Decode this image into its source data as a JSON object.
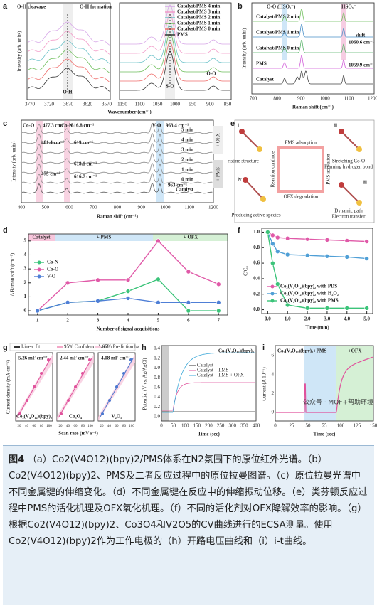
{
  "panels": {
    "a": {
      "label": "a",
      "xlabel": "Wavenumber (cm⁻¹)",
      "ylabel": "Intensity (arb. units)",
      "xticks_left": [
        "3770",
        "3720",
        "3670",
        "3620",
        "3570"
      ],
      "xticks_right": [
        "1150",
        "1100",
        "1050",
        "1000",
        "950",
        "900",
        "850"
      ],
      "annotations": [
        "O-H cleavage",
        "O-H formation",
        "O-H",
        "S-O",
        "O-O"
      ],
      "legend": [
        {
          "name": "Catalyst/PMS 4 min",
          "color": "#d7a8e8"
        },
        {
          "name": "Catalyst/PMS 3 min",
          "color": "#f29ac8"
        },
        {
          "name": "Catalyst/PMS 2 min",
          "color": "#6cc2c9"
        },
        {
          "name": "Catalyst/PMS 1 min",
          "color": "#6fbf5c"
        },
        {
          "name": "Catalyst/PMS 0 min",
          "color": "#ef6f6c"
        },
        {
          "name": "PMS",
          "color": "#333333"
        }
      ]
    },
    "b": {
      "label": "b",
      "xlabel": "Raman shift (cm⁻¹)",
      "ylabel": "Intensity (arb. units)",
      "xticks": [
        700,
        800,
        900,
        1000,
        1100,
        1200
      ],
      "annotations": [
        "O-O (HSO₅⁻)",
        "HSO₅⁻",
        "shift",
        "1060.6 cm⁻¹",
        "1059.9 cm⁻¹"
      ],
      "traces": [
        {
          "name": "Catalyst/PMS 2 min",
          "color": "#6fbf5c"
        },
        {
          "name": "Catalyst/PMS 1 min",
          "color": "#4a90c8"
        },
        {
          "name": "Catalyst/PMS 0 min",
          "color": "#5bb56c"
        },
        {
          "name": "PMS",
          "color": "#d05bd8"
        },
        {
          "name": "Catalyst",
          "color": "#444444"
        }
      ]
    },
    "c": {
      "label": "c",
      "xlabel": "Raman shift (cm⁻¹)",
      "ylabel": "Intensity (arb. units)",
      "xticks": [
        400,
        500,
        600,
        700,
        800,
        900,
        1000,
        1100,
        1200
      ],
      "annotations": [
        "Co-O",
        "477.3 cm⁻¹",
        "Co-N",
        "616.8 cm⁻¹",
        "V-O",
        "963.4 cm⁻¹",
        "481.4 cm⁻¹",
        "619 cm⁻¹",
        "618.1 cm⁻¹",
        "475 cm⁻¹",
        "616.7 cm⁻¹",
        "963 cm⁻¹"
      ],
      "traces": [
        "5 min",
        "4 min",
        "3 min",
        "2 min",
        "1 min",
        "0 min",
        "Catalyst"
      ],
      "stages": [
        "+ OFX",
        "+ PMS"
      ]
    },
    "e": {
      "label": "e",
      "steps": [
        {
          "num": "i",
          "text": [
            "Pristine structure"
          ]
        },
        {
          "num": "ii",
          "text": [
            "Stretching Co-O",
            "Forming hydrogen bond"
          ]
        },
        {
          "num": "iii",
          "text": [
            "Dynamic path",
            "Electron transfer"
          ]
        },
        {
          "num": "iv",
          "text": [
            "Producing active species"
          ]
        }
      ],
      "arrows": [
        "PMS adsorption",
        "PMS activation",
        "OFX degradation",
        "Reaction continue"
      ]
    },
    "g": {
      "label": "g",
      "legend": [
        "Linear fit",
        "95% Confidence band",
        "95% Prediction band"
      ],
      "ylabel": "Current density (mA cm⁻²)",
      "xlabel": "Scan rate (mV s⁻¹)",
      "xticks": [
        20,
        40,
        60,
        80,
        100
      ],
      "subplots": [
        {
          "name": "Co₂(V₄O₁₂)(bpy)₂",
          "value": "5.26 mF cm⁻²",
          "color": "#e0529c"
        },
        {
          "name": "Co₃O₄",
          "value": "2.44 mF cm⁻²",
          "color": "#e0529c"
        },
        {
          "name": "V₂O₅",
          "value": "4.08 mF cm⁻²",
          "color": "#4a78d0"
        }
      ]
    },
    "h": {
      "label": "h",
      "title": "Co₂(V₄O₁₂)(bpy)₂",
      "ylabel": "Potential (V vs. Ag/AgCl)",
      "xlabel": "Time (sec)",
      "xticks": [
        0,
        50,
        100,
        150,
        200,
        250,
        300,
        350,
        400
      ],
      "yticks": [
        {
          "value": 0,
          "label": "0.0"
        },
        {
          "value": 0.2,
          "label": "0.2"
        },
        {
          "value": 0.4,
          "label": "0.4"
        },
        {
          "value": 0.6,
          "label": "0.6"
        },
        {
          "value": 0.8,
          "label": "0.8"
        },
        {
          "value": 1,
          "label": "1.0"
        },
        {
          "value": 1.2,
          "label": "1.2"
        },
        {
          "value": 1.4,
          "label": "1.4"
        }
      ],
      "legend": [
        {
          "name": "Catalyst",
          "color": "#333333"
        },
        {
          "name": "Catalyst + PMS",
          "color": "#e0529c"
        },
        {
          "name": "Catalyst + PMS + OFX",
          "color": "#3aa7d8"
        }
      ]
    },
    "i": {
      "label": "i",
      "title": "Co₂(V₄O₁₂)(bpy)₂",
      "ylabel": "Current (A 10⁻⁶)",
      "xlabel": "Time (sec)",
      "xticks": [
        0,
        25,
        50,
        75,
        100,
        125,
        150
      ],
      "yticks": [
        0,
        2,
        4,
        6
      ],
      "stages": [
        "+PMS",
        "+OFX"
      ]
    },
    "watermark": "公众号 · MOF+帮助环境"
  },
  "chart_data": [
    {
      "type": "line",
      "panel": "d",
      "xlabel": "Number of signal acquisitions",
      "ylabel": "Δ Raman shift (cm⁻¹)",
      "annotations": [
        "Catalyst",
        "+ PMS",
        "+ OFX"
      ],
      "x": [
        1,
        2,
        3,
        4,
        5,
        6,
        7
      ],
      "xlim": [
        0.7,
        7.3
      ],
      "xticks": [
        1,
        2,
        3,
        4,
        5,
        6,
        7
      ],
      "ylim": [
        -0.3,
        5.5
      ],
      "yticks": [
        0,
        1,
        2,
        3,
        4,
        5
      ],
      "legend": "upper left",
      "series": [
        {
          "name": "Co-N",
          "color": "#3cc47a",
          "values": [
            0,
            0.6,
            0.7,
            1.4,
            2.25,
            0,
            0
          ]
        },
        {
          "name": "Co-O",
          "color": "#e05aa8",
          "values": [
            0,
            2.0,
            2.2,
            2.2,
            5.0,
            2.8,
            1.9
          ]
        },
        {
          "name": "V-O",
          "color": "#4f7fd6",
          "values": [
            0,
            0.6,
            0.7,
            0.9,
            0.6,
            0.6,
            0.6
          ]
        }
      ]
    },
    {
      "type": "line",
      "panel": "f",
      "xlabel": "Time (min)",
      "ylabel": "C/C₀",
      "x": [
        0,
        0.25,
        0.5,
        1,
        2,
        3,
        4,
        5
      ],
      "xlim": [
        -0.3,
        5.3
      ],
      "ylim": [
        -0.05,
        1.05
      ],
      "legend": "lower left",
      "xticks": [
        {
          "value": 0,
          "label": "0.0"
        },
        {
          "value": 1,
          "label": "1.0"
        },
        {
          "value": 2,
          "label": "2.0"
        },
        {
          "value": 3,
          "label": "3.0"
        },
        {
          "value": 4,
          "label": "4.0"
        },
        {
          "value": 5,
          "label": "5.0"
        }
      ],
      "yticks": [
        {
          "value": 0,
          "label": "0.0"
        },
        {
          "value": 0.2,
          "label": "0.2"
        },
        {
          "value": 0.4,
          "label": "0.4"
        },
        {
          "value": 0.6,
          "label": "0.6"
        },
        {
          "value": 0.8,
          "label": "0.8"
        },
        {
          "value": 1,
          "label": "1.0"
        }
      ],
      "series": [
        {
          "name": "Co₂(V₄O₁₂)(bpy)₂ with PDS",
          "color": "#e05aa8",
          "values": [
            1,
            0.96,
            0.93,
            0.92,
            0.91,
            0.9,
            0.89,
            0.88
          ]
        },
        {
          "name": "Co₂(V₄O₁₂)(bpy)₂ with H₂O₂",
          "color": "#4f9fd6",
          "values": [
            1,
            0.85,
            0.75,
            0.71,
            0.7,
            0.69,
            0.68,
            0.66
          ]
        },
        {
          "name": "Co₂(V₄O₁₂)(bpy)₂ with PMS",
          "color": "#3cc47a",
          "values": [
            1,
            0.6,
            0.33,
            0.06,
            0.02,
            0.02,
            0.02,
            0.02
          ]
        }
      ]
    }
  ],
  "caption": {
    "label": "图4",
    "text": "（a）Co2(V4O12)(bpy)2/PMS体系在N2氛围下的原位红外光谱。（b）Co2(V4O12)(bpy)2、PMS及二者反应过程中的原位拉曼图谱。（c）原位拉曼光谱中不同金属键的伸缩变化。（d）不同金属键在反应中的伸缩振动位移。（e）类芬顿反应过程中PMS的活化机理及OFX氧化机理。（f）不同的活化剂对OFX降解效率的影响。（g）根据Co2(V4O12)(bpy)2、Co3O4和V2O5的CV曲线进行的ECSA测量。使用Co2(V4O12)(bpy)2作为工作电极的（h）开路电压曲线和（i）i-t曲线。"
  }
}
